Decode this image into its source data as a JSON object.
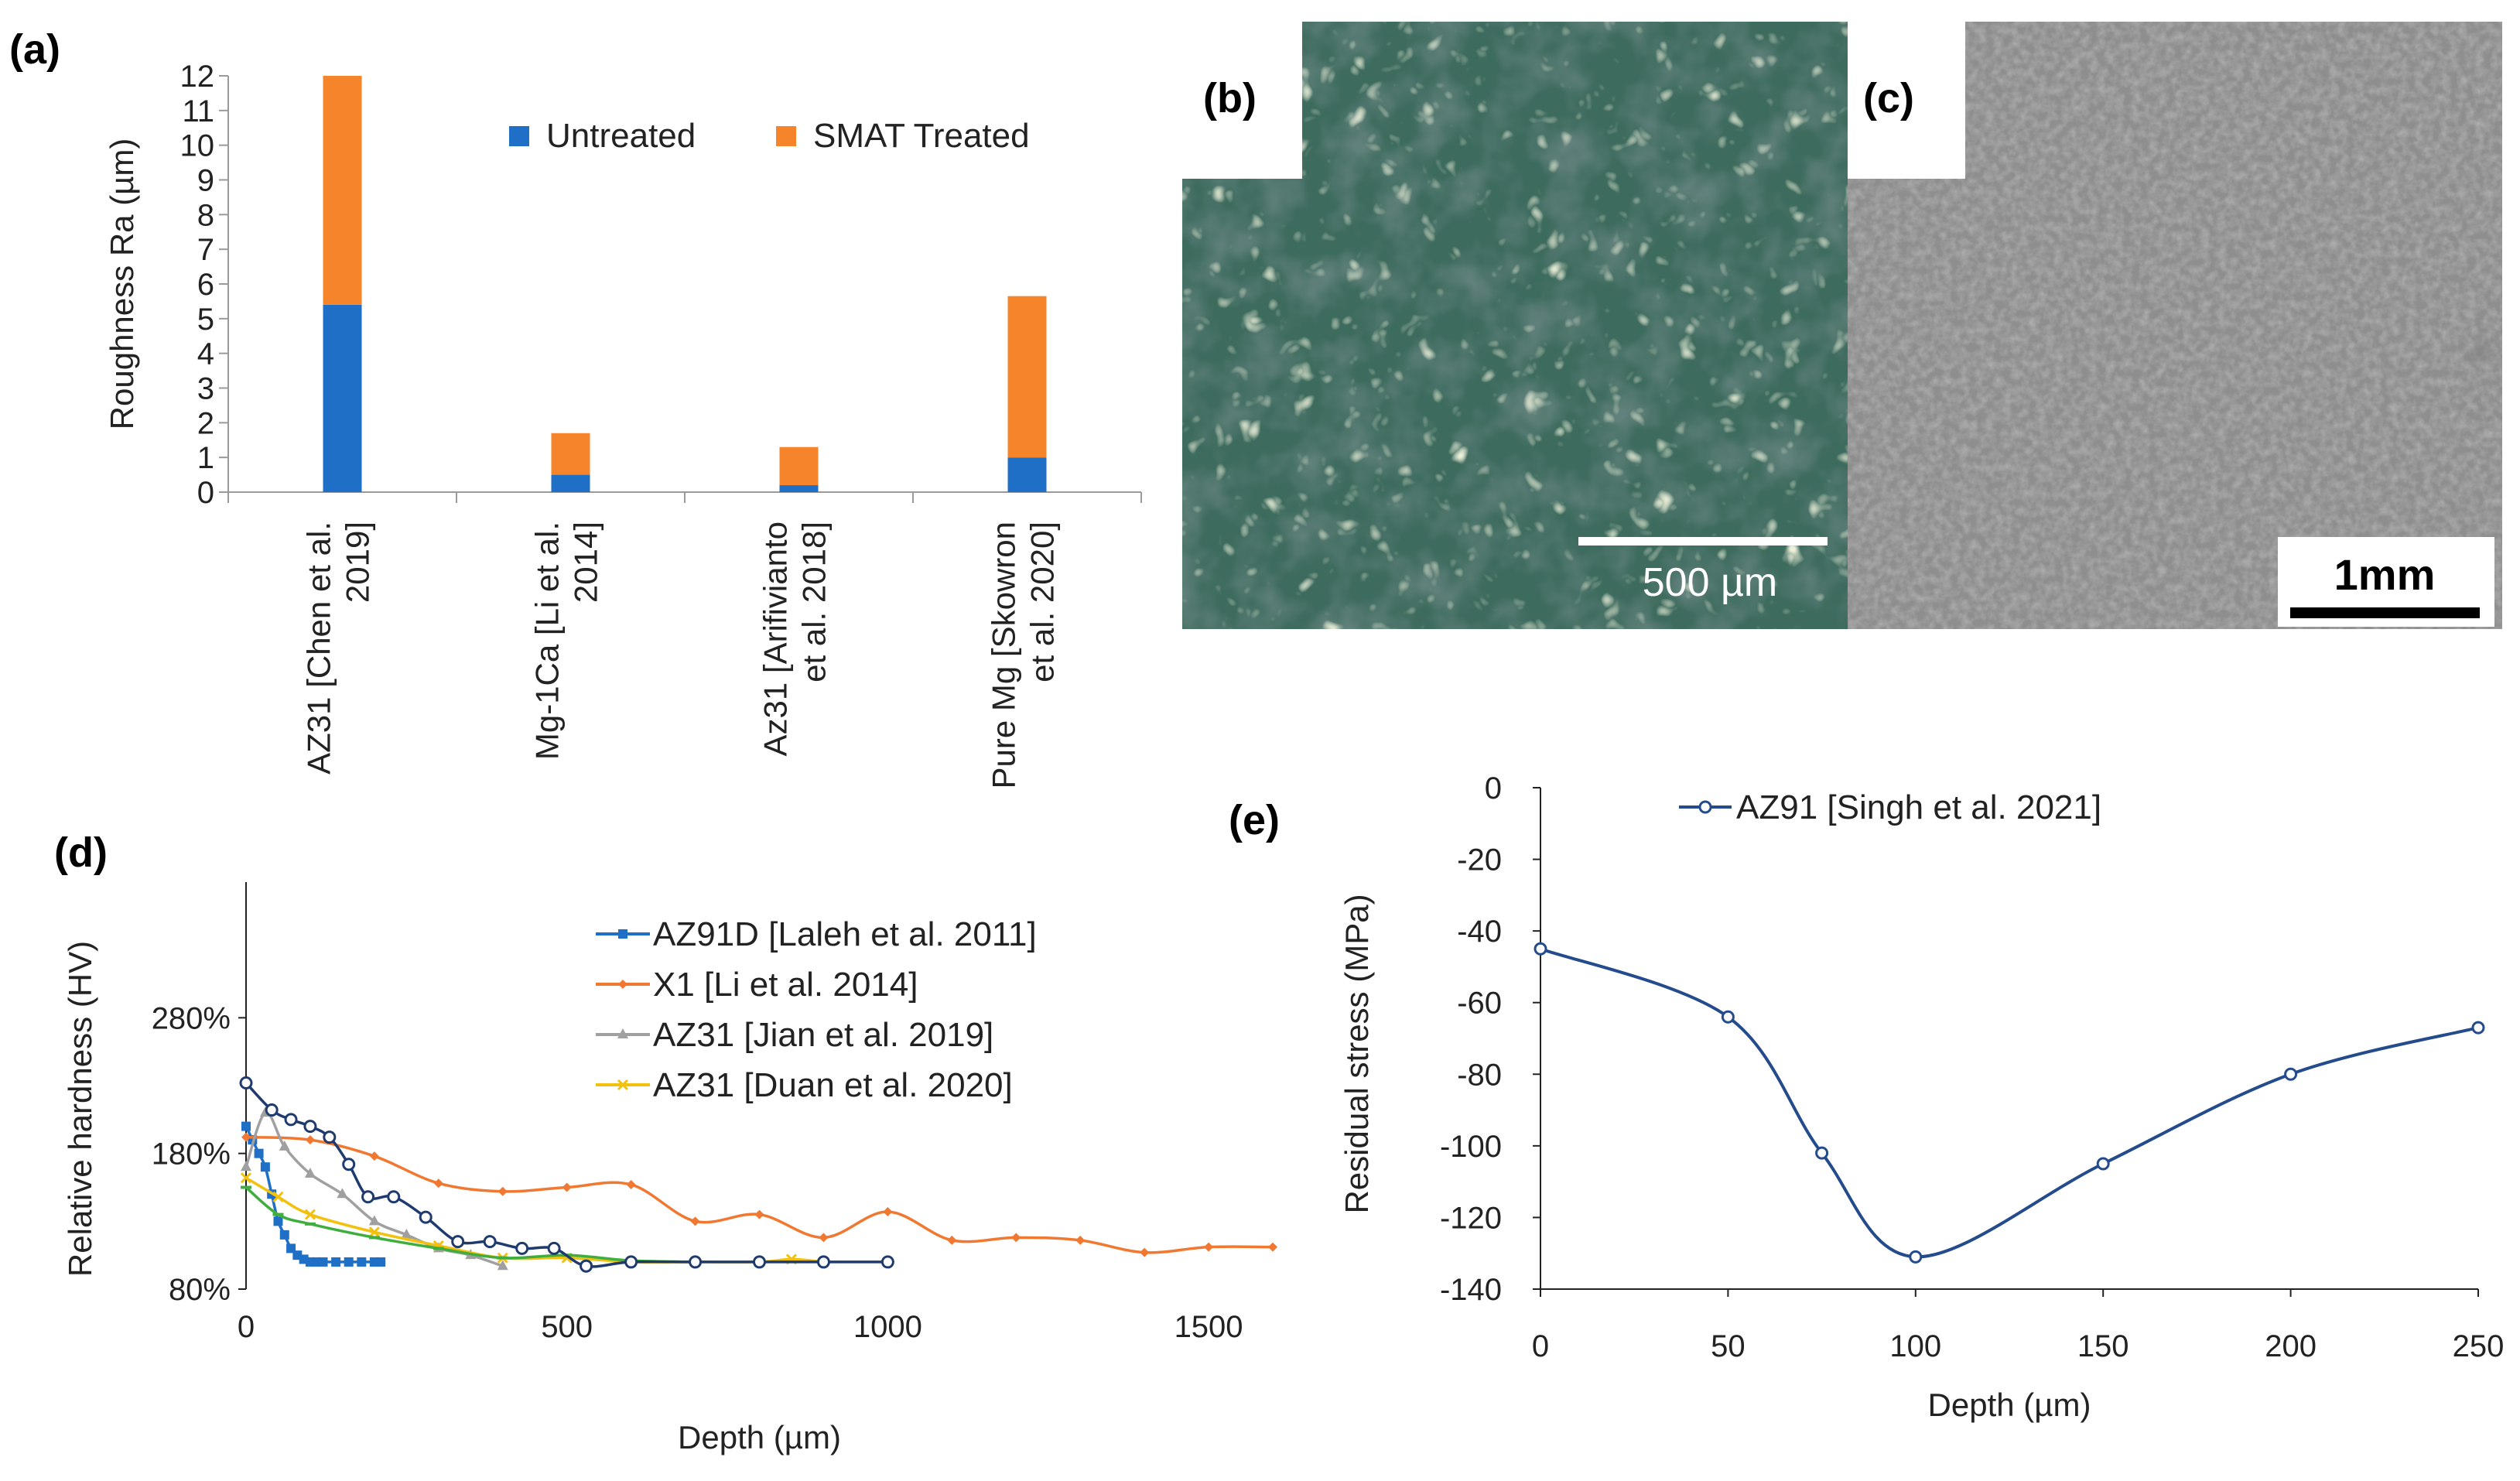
{
  "panels": {
    "a": "(a)",
    "b": "(b)",
    "c": "(c)",
    "d": "(d)",
    "e": "(e)"
  },
  "micrographs": {
    "b": {
      "scale_label": "500 µm",
      "colors": {
        "dark": "#1f3a35",
        "mid": "#3d6b5e",
        "light": "#c9d7b2"
      }
    },
    "c": {
      "scale_label": "1mm",
      "colors": {
        "base": "#8e8e8e",
        "dark": "#4a4a4a"
      }
    }
  },
  "chart_data": [
    {
      "id": "a",
      "type": "bar",
      "stacked": true,
      "title": "",
      "xlabel": "",
      "ylabel": "Roughness Ra (µm)",
      "ylim": [
        0,
        12
      ],
      "yticks": [
        "0",
        "1",
        "2",
        "3",
        "4",
        "5",
        "6",
        "7",
        "8",
        "9",
        "10",
        "11",
        "12"
      ],
      "categories": [
        [
          "AZ31 [Chen et al.",
          "2019]"
        ],
        [
          "Mg-1Ca [Li et al.",
          "2014]"
        ],
        [
          "Az31 [Arifivianto",
          "et al. 2018]"
        ],
        [
          "Pure Mg [Skowron",
          "et al. 2020]"
        ]
      ],
      "series": [
        {
          "name": "Untreated",
          "color": "#1f6fc6",
          "values": [
            5.4,
            0.5,
            0.2,
            1.0
          ]
        },
        {
          "name": "SMAT Treated",
          "color": "#f5842a",
          "values": [
            6.6,
            1.2,
            1.1,
            4.65
          ]
        }
      ],
      "legend": "top-right"
    },
    {
      "id": "d",
      "type": "line",
      "xlabel": "Depth (µm)",
      "ylabel": "Relative hardness (HV)",
      "xlim": [
        0,
        1600
      ],
      "ylim": [
        80,
        380
      ],
      "xticks": [
        "0",
        "500",
        "1000",
        "1500"
      ],
      "yticks": [
        "80%",
        "180%",
        "280%"
      ],
      "legend": "top-right",
      "series": [
        {
          "name": "AZ91D [Laleh et al. 2011]",
          "color": "#1f6fc6",
          "marker": "square",
          "x": [
            0,
            10,
            20,
            30,
            40,
            50,
            60,
            70,
            80,
            90,
            100,
            110,
            120,
            140,
            160,
            180,
            200,
            210
          ],
          "y": [
            200,
            190,
            180,
            170,
            150,
            130,
            120,
            110,
            105,
            102,
            100,
            100,
            100,
            100,
            100,
            100,
            100,
            100
          ]
        },
        {
          "name": "X1 [Li et al. 2014]",
          "color": "#f07830",
          "marker": "diamond",
          "x": [
            0,
            100,
            200,
            300,
            400,
            500,
            600,
            700,
            800,
            900,
            1000,
            1100,
            1200,
            1300,
            1400,
            1500,
            1600
          ],
          "y": [
            192,
            190,
            178,
            158,
            152,
            155,
            157,
            130,
            135,
            118,
            137,
            116,
            118,
            116,
            107,
            111,
            111
          ]
        },
        {
          "name": "AZ31 [Jian et al. 2019]",
          "color": "#a0a0a0",
          "marker": "triangle",
          "x": [
            0,
            30,
            60,
            100,
            150,
            200,
            250,
            300,
            350,
            400
          ],
          "y": [
            170,
            210,
            185,
            165,
            150,
            130,
            120,
            110,
            105,
            97
          ]
        },
        {
          "name": "AZ31 [Duan et al. 2020]",
          "color": "#f2c10f",
          "marker": "x",
          "x": [
            0,
            50,
            100,
            200,
            300,
            400,
            500,
            600,
            700,
            800,
            850,
            900
          ],
          "y": [
            162,
            148,
            135,
            122,
            112,
            103,
            103,
            100,
            100,
            100,
            102,
            100
          ]
        },
        {
          "name": "",
          "color": "#3fae3f",
          "marker": "dash",
          "x": [
            0,
            50,
            100,
            200,
            300,
            400,
            500,
            600,
            700
          ],
          "y": [
            155,
            135,
            128,
            118,
            110,
            103,
            105,
            101,
            100
          ]
        },
        {
          "name": "",
          "color": "#1f3b6e",
          "marker": "circle",
          "x": [
            0,
            40,
            70,
            100,
            130,
            160,
            190,
            230,
            280,
            330,
            380,
            430,
            480,
            530,
            600,
            700,
            800,
            900,
            1000
          ],
          "y": [
            232,
            212,
            205,
            200,
            192,
            172,
            148,
            148,
            133,
            115,
            115,
            110,
            110,
            97,
            100,
            100,
            100,
            100,
            100
          ]
        }
      ]
    },
    {
      "id": "e",
      "type": "line",
      "xlabel": "Depth (µm)",
      "ylabel": "Residual stress (MPa)",
      "xlim": [
        0,
        250
      ],
      "ylim": [
        -140,
        0
      ],
      "xticks": [
        "0",
        "50",
        "100",
        "150",
        "200",
        "250"
      ],
      "yticks": [
        "0",
        "-20",
        "-40",
        "-60",
        "-80",
        "-100",
        "-120",
        "-140"
      ],
      "legend": "top",
      "series": [
        {
          "name": "AZ91 [Singh et al. 2021]",
          "color": "#244b8c",
          "marker": "circle",
          "x": [
            0,
            50,
            75,
            100,
            150,
            200,
            250
          ],
          "y": [
            -45,
            -64,
            -102,
            -131,
            -105,
            -80,
            -67
          ]
        }
      ]
    }
  ]
}
